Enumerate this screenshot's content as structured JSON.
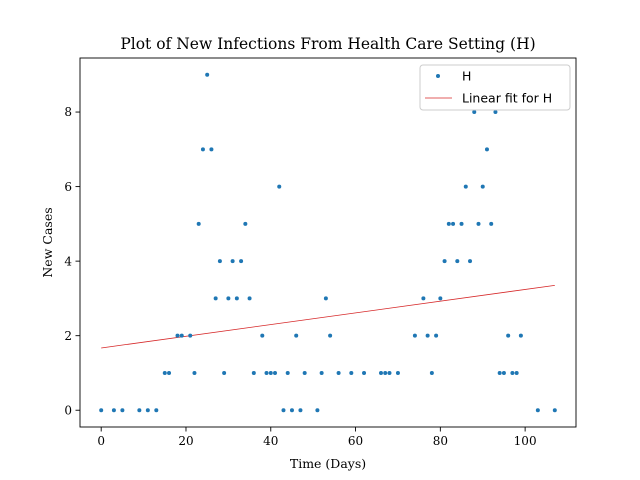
{
  "chart_data": {
    "type": "scatter",
    "title": "Plot of New Infections From Health Care Setting (H)",
    "xlabel": "Time (Days)",
    "ylabel": "New Cases",
    "xlim": [
      -5,
      112
    ],
    "ylim": [
      -0.45,
      9.45
    ],
    "xticks": [
      0,
      20,
      40,
      60,
      80,
      100
    ],
    "yticks": [
      0,
      2,
      4,
      6,
      8
    ],
    "grid": false,
    "legend_position": "top-right",
    "colors": {
      "points": "#1f77b4",
      "fit": "#d62728"
    },
    "series": [
      {
        "name": "H",
        "type": "scatter",
        "x": [
          0,
          3,
          5,
          9,
          11,
          13,
          15,
          16,
          18,
          19,
          21,
          22,
          23,
          24,
          25,
          26,
          27,
          28,
          29,
          30,
          31,
          32,
          33,
          34,
          35,
          36,
          38,
          39,
          40,
          41,
          42,
          43,
          44,
          45,
          46,
          47,
          48,
          51,
          52,
          53,
          54,
          56,
          59,
          62,
          66,
          67,
          68,
          70,
          74,
          76,
          77,
          78,
          79,
          80,
          81,
          82,
          83,
          84,
          85,
          86,
          87,
          88,
          89,
          90,
          91,
          92,
          93,
          94,
          95,
          96,
          97,
          98,
          99,
          103,
          107
        ],
        "y": [
          0,
          0,
          0,
          0,
          0,
          0,
          1,
          1,
          2,
          2,
          2,
          1,
          5,
          7,
          9,
          7,
          3,
          4,
          1,
          3,
          4,
          3,
          4,
          5,
          3,
          1,
          2,
          1,
          1,
          1,
          6,
          0,
          1,
          0,
          2,
          0,
          1,
          0,
          1,
          3,
          2,
          1,
          1,
          1,
          1,
          1,
          1,
          1,
          2,
          3,
          2,
          1,
          2,
          3,
          4,
          5,
          5,
          4,
          5,
          6,
          4,
          8,
          5,
          6,
          7,
          5,
          8,
          1,
          1,
          2,
          1,
          1,
          2,
          0,
          0
        ]
      },
      {
        "name": "Linear fit for H",
        "type": "line",
        "x": [
          0,
          107
        ],
        "y": [
          1.67,
          3.35
        ]
      }
    ]
  }
}
